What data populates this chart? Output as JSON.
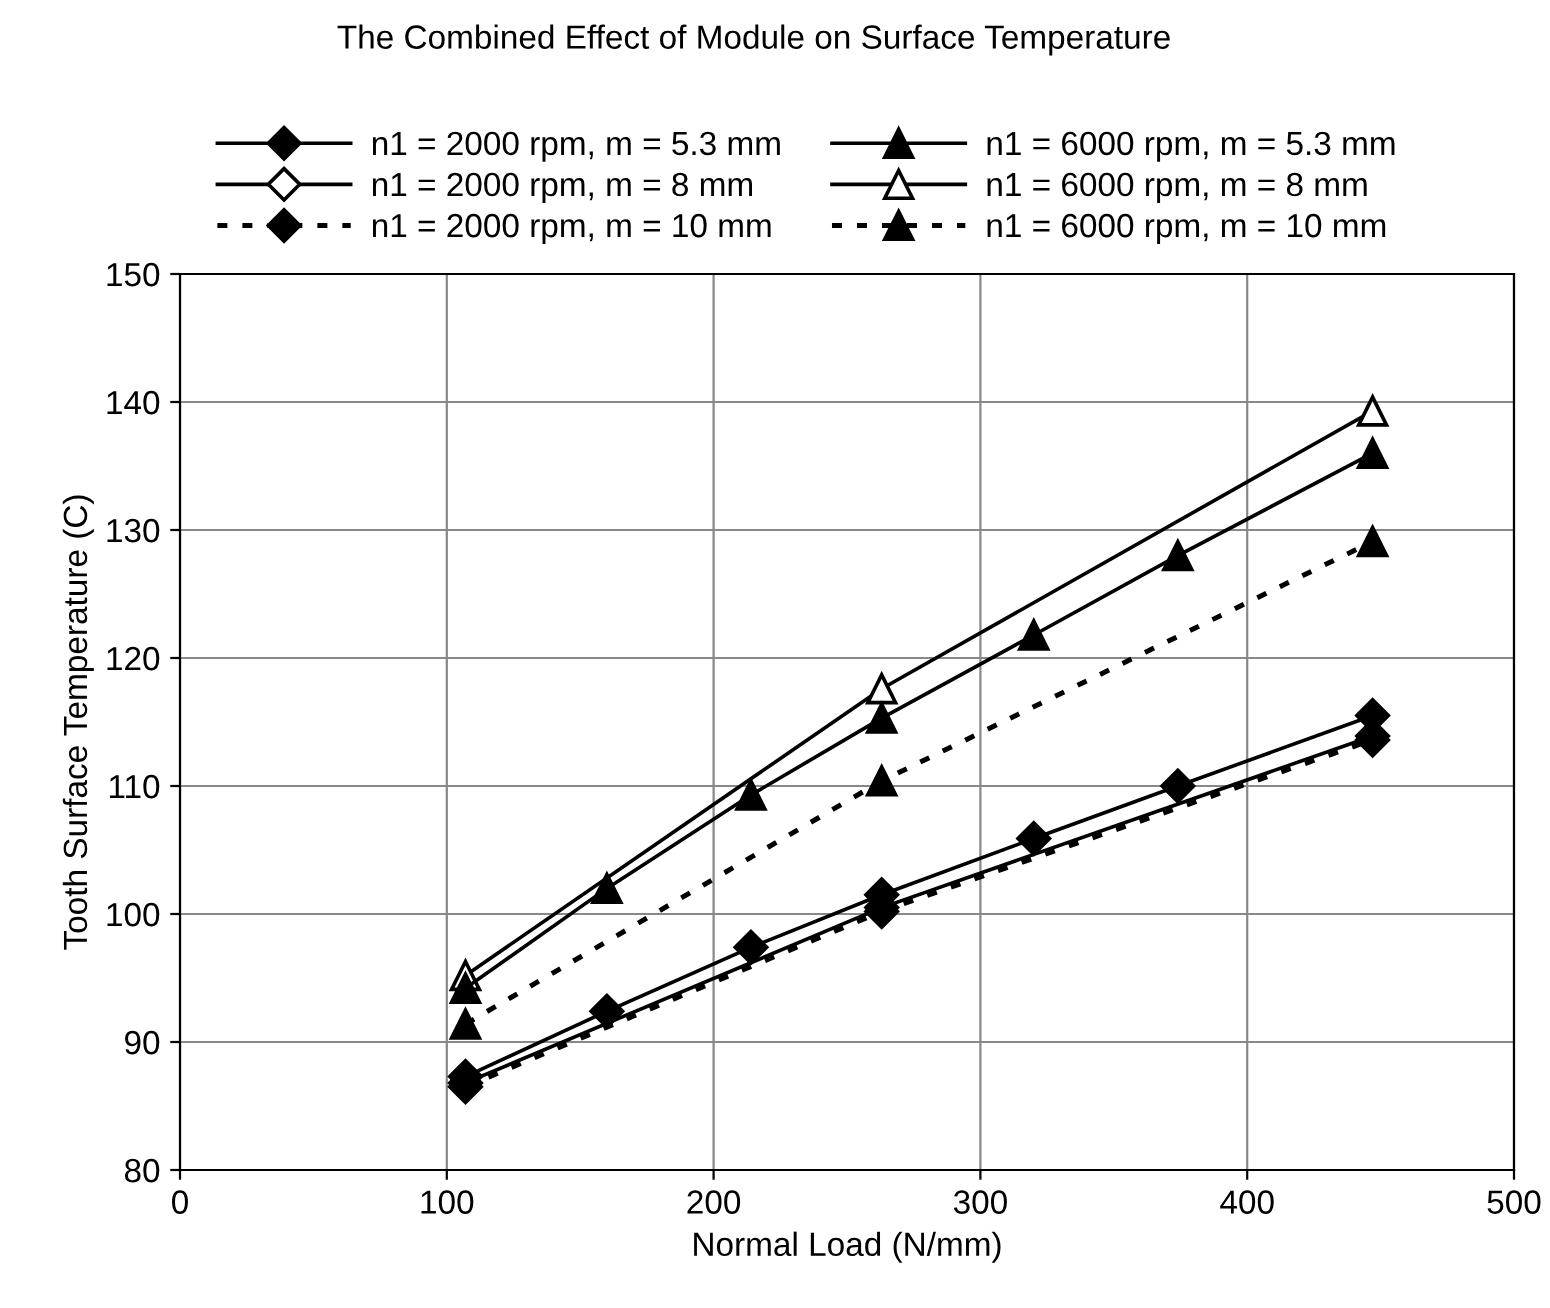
{
  "chart_data": {
    "type": "line",
    "title": "The Combined Effect of Module on Surface Temperature",
    "xlabel": "Normal Load (N/mm)",
    "ylabel": "Tooth Surface Temperature (C)",
    "xlim": [
      0,
      500
    ],
    "xticks": [
      0,
      100,
      200,
      300,
      400,
      500
    ],
    "ylim": [
      80,
      150
    ],
    "yticks": [
      80,
      90,
      100,
      110,
      120,
      130,
      140,
      150
    ],
    "grid": true,
    "legend": "top",
    "series": [
      {
        "name": "n1 = 2000 rpm, m = 5.3 mm",
        "color": "#000000",
        "marker": "diamond",
        "line_style": "solid",
        "x": [
          107,
          160,
          214,
          263,
          320,
          374,
          447
        ],
        "values": [
          87.3,
          92.4,
          97.4,
          101.5,
          105.9,
          110.0,
          115.5
        ]
      },
      {
        "name": "n1 = 2000 rpm, m = 8 mm",
        "color": "#000000",
        "marker": "diamond",
        "line_style": "solid",
        "x": [
          107,
          263,
          447
        ],
        "values": [
          86.8,
          100.5,
          113.9
        ]
      },
      {
        "name": "n1 = 2000 rpm, m = 10 mm",
        "color": "#000000",
        "marker": "diamond",
        "line_style": "dotted",
        "x": [
          107,
          263,
          447
        ],
        "values": [
          86.5,
          100.2,
          113.6
        ]
      },
      {
        "name": "n1 = 6000 rpm, m = 5.3 mm",
        "color": "#000000",
        "marker": "triangle",
        "line_style": "solid",
        "x": [
          107,
          160,
          214,
          263,
          320,
          374,
          447
        ],
        "values": [
          94.2,
          102.0,
          109.3,
          115.3,
          121.8,
          128.0,
          136.0
        ]
      },
      {
        "name": "n1 = 6000 rpm, m = 8 mm",
        "color": "#000000",
        "marker": "triangle",
        "line_style": "solid",
        "x": [
          107,
          263,
          447
        ],
        "values": [
          95.2,
          117.6,
          139.3
        ]
      },
      {
        "name": "n1 = 6000 rpm, m = 10 mm",
        "color": "#000000",
        "marker": "triangle",
        "line_style": "dotted",
        "x": [
          107,
          263,
          447
        ],
        "values": [
          91.4,
          110.4,
          129.1
        ]
      }
    ]
  }
}
